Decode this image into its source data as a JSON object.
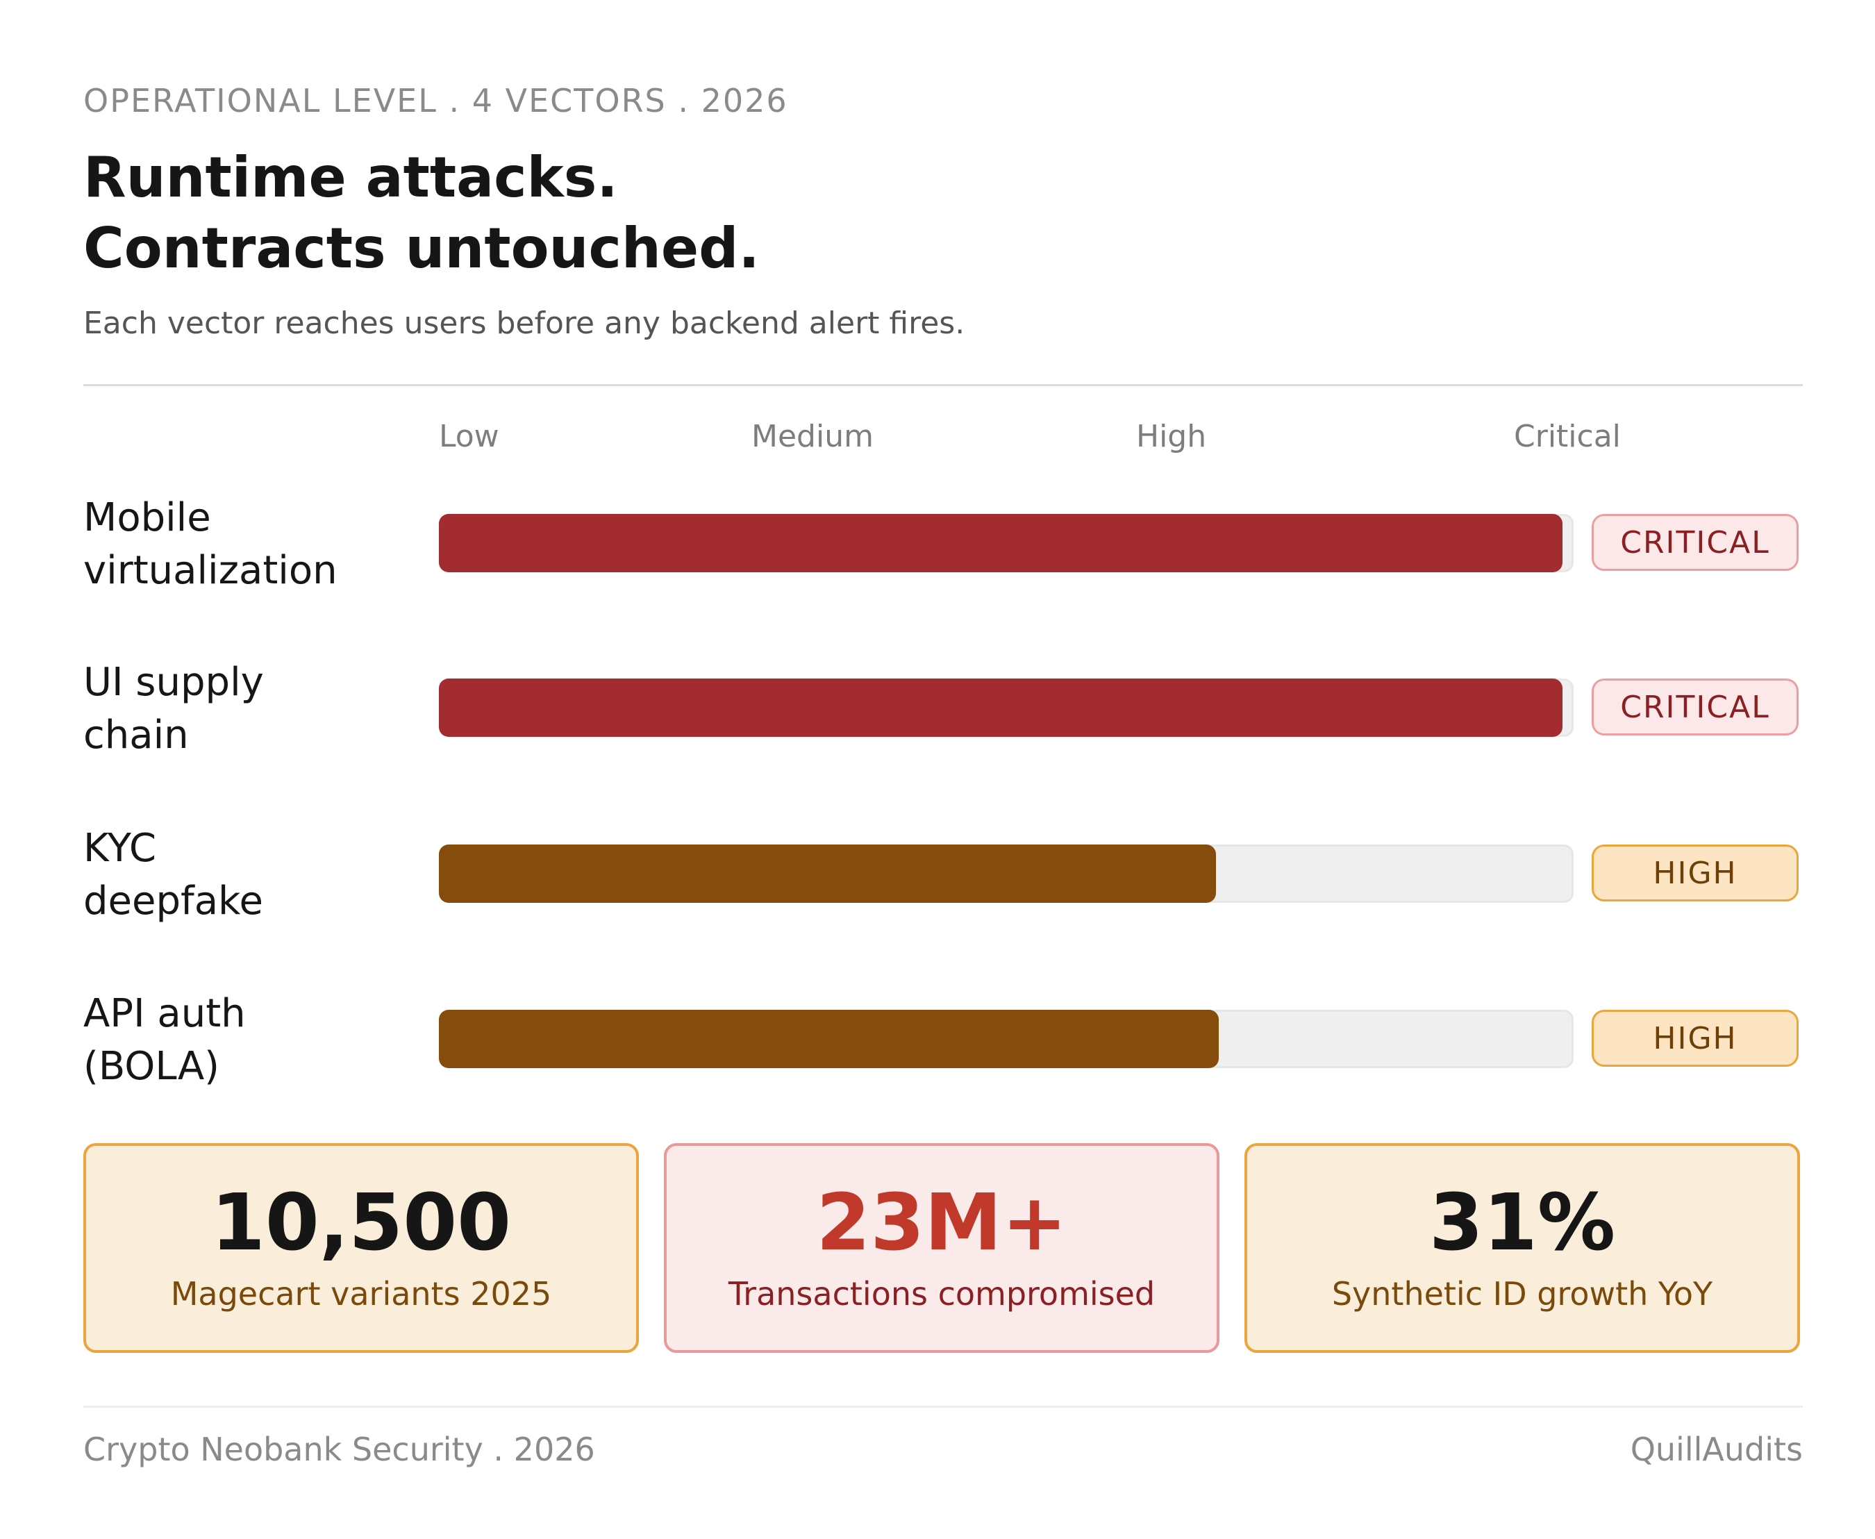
{
  "header": {
    "eyebrow": "OPERATIONAL LEVEL . 4 VECTORS . 2026",
    "title_line1": "Runtime attacks.",
    "title_line2": "Contracts untouched.",
    "subtitle": "Each vector reaches users before any backend alert fires."
  },
  "chart_data": {
    "type": "bar",
    "orientation": "horizontal",
    "scale_labels": [
      "Low",
      "Medium",
      "High",
      "Critical"
    ],
    "categories": [
      "Mobile virtualization",
      "UI supply chain",
      "KYC deepfake",
      "API auth (BOLA)"
    ],
    "label_lines": [
      [
        "Mobile",
        "virtualization"
      ],
      [
        "UI supply",
        "chain"
      ],
      [
        "KYC",
        "deepfake"
      ],
      [
        "API auth",
        "(BOLA)"
      ]
    ],
    "values": [
      0.99,
      0.99,
      0.685,
      0.687
    ],
    "value_unit": "fraction of maximum severity",
    "ratings": [
      "CRITICAL",
      "CRITICAL",
      "HIGH",
      "HIGH"
    ],
    "colors": {
      "CRITICAL": {
        "bar": "#a32c30",
        "badge_bg": "#fce8e8",
        "badge_border": "#ec9ea0",
        "badge_text": "#8a1f24"
      },
      "HIGH": {
        "bar": "#854c0c",
        "badge_bg": "#fde5c4",
        "badge_border": "#eca53c",
        "badge_text": "#6e3f06"
      }
    }
  },
  "stats": [
    {
      "value": "10,500",
      "label": "Magecart variants 2025",
      "bg": "#faeedb",
      "border": "#eca53c",
      "value_color": "#161616",
      "label_color": "#7a4a0c"
    },
    {
      "value": "23M+",
      "label": "Transactions compromised",
      "bg": "#fbeaea",
      "border": "#e89a9a",
      "value_color": "#c0392b",
      "label_color": "#8a1f24"
    },
    {
      "value": "31%",
      "label": "Synthetic ID growth YoY",
      "bg": "#faeedb",
      "border": "#eca53c",
      "value_color": "#161616",
      "label_color": "#7a4a0c"
    }
  ],
  "footer": {
    "left": "Crypto Neobank Security . 2026",
    "right": "QuillAudits"
  }
}
